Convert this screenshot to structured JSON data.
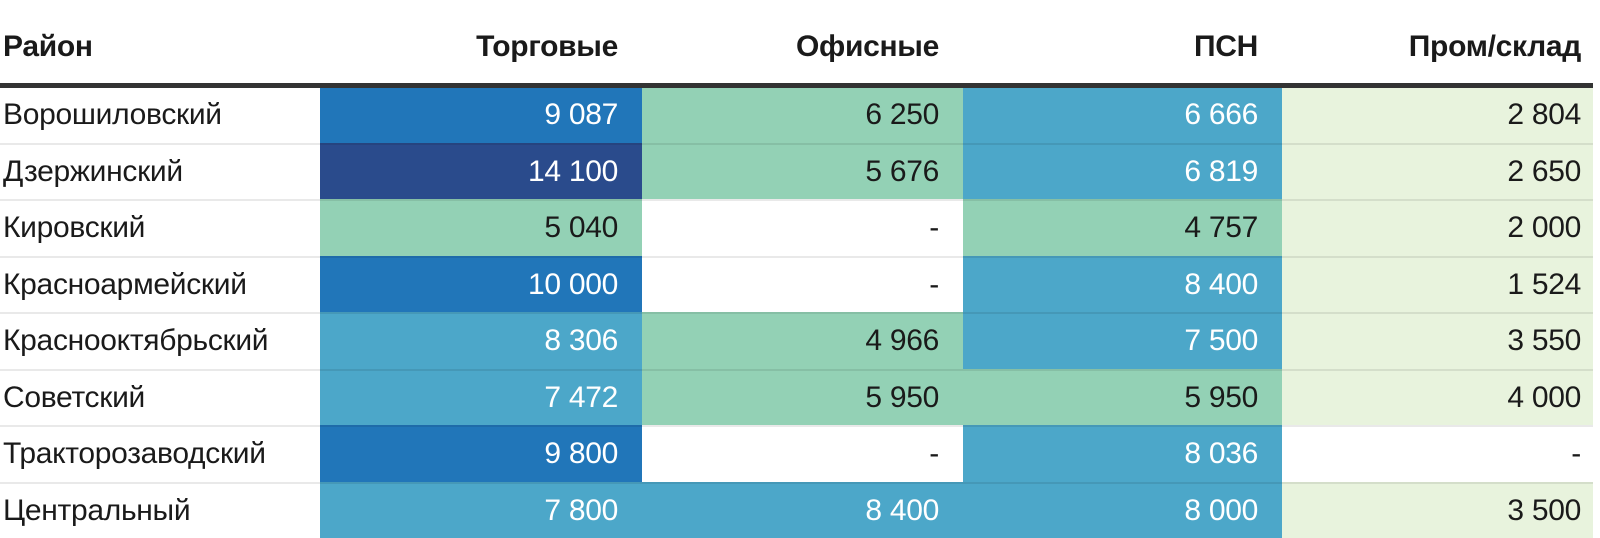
{
  "chart_data": {
    "type": "heatmap",
    "rows_label": "Район",
    "columns": [
      "Торговые",
      "Офисные",
      "ПСН",
      "Пром/склад"
    ],
    "districts": [
      "Ворошиловский",
      "Дзержинский",
      "Кировский",
      "Красноармейский",
      "Краснооктябрьский",
      "Советский",
      "Тракторозаводский",
      "Центральный"
    ],
    "values": [
      [
        9087,
        6250,
        6666,
        2804
      ],
      [
        14100,
        5676,
        6819,
        2650
      ],
      [
        5040,
        null,
        4757,
        2000
      ],
      [
        10000,
        null,
        8400,
        1524
      ],
      [
        8306,
        4966,
        7500,
        3550
      ],
      [
        7472,
        5950,
        5950,
        4000
      ],
      [
        9800,
        null,
        8036,
        null
      ],
      [
        7800,
        8400,
        8000,
        3500
      ]
    ],
    "missing_marker": "-",
    "legend_position": "none",
    "color_scale_note": "higher value = darker blue, lower value = lighter green"
  },
  "table": {
    "header": {
      "district": "Район",
      "cols": [
        "Торговые",
        "Офисные",
        "ПСН",
        "Пром/склад"
      ]
    },
    "rows": [
      {
        "district": "Ворошиловский",
        "cells": [
          {
            "text": "9 087",
            "bg": "blue"
          },
          {
            "text": "6 250",
            "bg": "green"
          },
          {
            "text": "6 666",
            "bg": "lightblue"
          },
          {
            "text": "2 804",
            "bg": "pale"
          }
        ]
      },
      {
        "district": "Дзержинский",
        "cells": [
          {
            "text": "14 100",
            "bg": "navy"
          },
          {
            "text": "5 676",
            "bg": "green"
          },
          {
            "text": "6 819",
            "bg": "lightblue"
          },
          {
            "text": "2 650",
            "bg": "pale"
          }
        ]
      },
      {
        "district": "Кировский",
        "cells": [
          {
            "text": "5 040",
            "bg": "green"
          },
          {
            "text": "-",
            "bg": "empty"
          },
          {
            "text": "4 757",
            "bg": "green"
          },
          {
            "text": "2 000",
            "bg": "pale"
          }
        ]
      },
      {
        "district": "Красноармейский",
        "cells": [
          {
            "text": "10 000",
            "bg": "blue"
          },
          {
            "text": "-",
            "bg": "empty"
          },
          {
            "text": "8 400",
            "bg": "lightblue"
          },
          {
            "text": "1 524",
            "bg": "pale"
          }
        ]
      },
      {
        "district": "Краснооктябрьский",
        "cells": [
          {
            "text": "8 306",
            "bg": "lightblue"
          },
          {
            "text": "4 966",
            "bg": "green"
          },
          {
            "text": "7 500",
            "bg": "lightblue"
          },
          {
            "text": "3 550",
            "bg": "pale"
          }
        ]
      },
      {
        "district": "Советский",
        "cells": [
          {
            "text": "7 472",
            "bg": "lightblue"
          },
          {
            "text": "5 950",
            "bg": "green"
          },
          {
            "text": "5 950",
            "bg": "green"
          },
          {
            "text": "4 000",
            "bg": "pale"
          }
        ]
      },
      {
        "district": "Тракторозаводский",
        "cells": [
          {
            "text": "9 800",
            "bg": "blue"
          },
          {
            "text": "-",
            "bg": "empty"
          },
          {
            "text": "8 036",
            "bg": "lightblue"
          },
          {
            "text": "-",
            "bg": "empty"
          }
        ]
      },
      {
        "district": "Центральный",
        "cells": [
          {
            "text": "7 800",
            "bg": "lightblue"
          },
          {
            "text": "8 400",
            "bg": "lightblue"
          },
          {
            "text": "8 000",
            "bg": "lightblue"
          },
          {
            "text": "3 500",
            "bg": "pale"
          }
        ]
      }
    ],
    "palette": {
      "navy": "#2A4B8C",
      "blue": "#2176B9",
      "lightblue": "#4CA7C9",
      "green": "#93D1B5",
      "pale": "#E8F3DD",
      "empty": "#FFFFFF",
      "text_dark": "#1A1A1A",
      "text_light": "#FFFFFF",
      "header_rule": "#333333"
    }
  }
}
